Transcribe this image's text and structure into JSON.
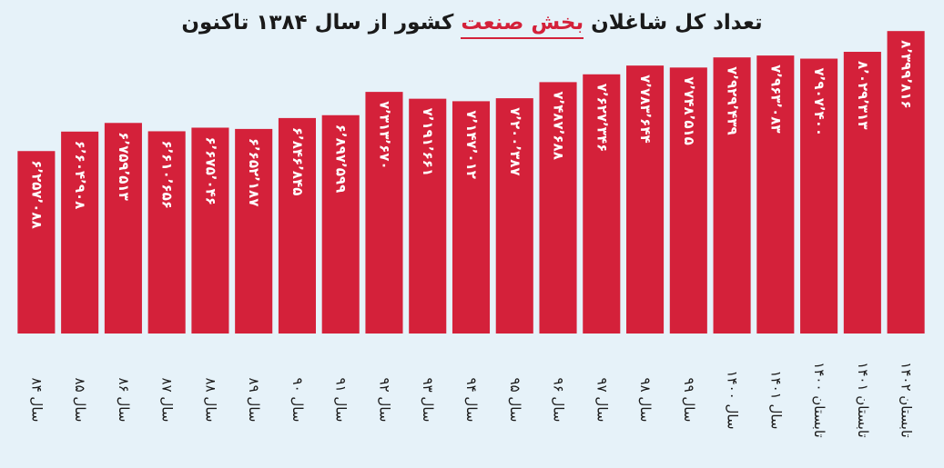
{
  "chart_data": {
    "type": "bar",
    "title": [
      "تعداد کل شاغلان",
      "بخش صنعت",
      "کشور از سال ۱۳۸۴ تاکنون"
    ],
    "categories": [
      "سال ۸۴",
      "سال ۸۵",
      "سال ۸۶",
      "سال ۸۷",
      "سال ۸۸",
      "سال ۸۹",
      "سال ۹۰",
      "سال ۹۱",
      "سال ۹۲",
      "سال ۹۳",
      "سال ۹۴",
      "سال ۹۵",
      "سال ۹۶",
      "سال ۹۷",
      "سال ۹۸",
      "سال ۹۹",
      "سال ۱۴۰۰",
      "سال ۱۴۰۱",
      "تابستان ۱۴۰۰",
      "تابستان ۱۴۰۱",
      "تابستان ۱۴۰۲"
    ],
    "values": [
      6257088,
      6604908,
      6759513,
      6610656,
      6675046,
      6652187,
      6846845,
      6897599,
      7313670,
      7191661,
      7147012,
      7200387,
      7487688,
      7627346,
      7783644,
      7748515,
      7929439,
      7963083,
      7907400,
      8029313,
      8399816
    ],
    "value_labels": [
      "۶٬۲۵۷٬۰۸۸",
      "۶٬۶۰۴٬۹۰۸",
      "۶٬۷۵۹٬۵۱۳",
      "۶٬۶۱۰٬۶۵۶",
      "۶٬۶۷۵٬۰۴۶",
      "۶٬۶۵۲٬۱۸۷",
      "۶٬۸۴۶٬۸۴۵",
      "۶٬۸۹۷٬۵۹۹",
      "۷٬۳۱۳٬۶۷۰",
      "۷٬۱۹۱٬۶۶۱",
      "۷٬۱۴۷٬۰۱۲",
      "۷٬۲۰۰٬۳۸۷",
      "۷٬۴۸۷٬۶۸۸",
      "۷٬۶۲۷٬۳۴۶",
      "۷٬۷۸۳٬۶۴۴",
      "۷٬۷۴۸٬۵۱۵",
      "۷٬۹۲۹٬۴۳۹",
      "۷٬۹۶۳٬۰۸۳",
      "۷٬۹۰۷٬۴۰۰",
      "۸٬۰۲۹٬۳۱۳",
      "۸٬۳۹۹٬۸۱۶"
    ],
    "color": "#d4213a",
    "ylim": [
      3000000,
      8500000
    ]
  }
}
